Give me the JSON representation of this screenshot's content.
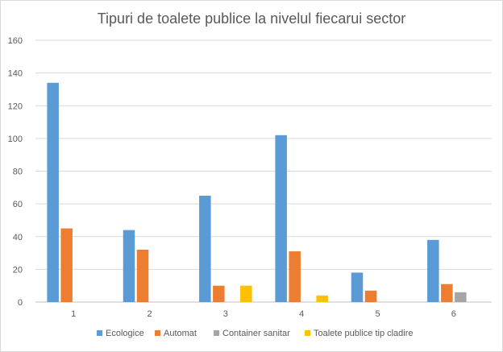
{
  "chart_data": {
    "type": "bar",
    "title": "Tipuri de toalete publice la nivelul fiecarui sector",
    "xlabel": "",
    "ylabel": "",
    "categories": [
      "1",
      "2",
      "3",
      "4",
      "5",
      "6"
    ],
    "ylim": [
      0,
      160
    ],
    "yticks": [
      "0",
      "20",
      "40",
      "60",
      "80",
      "100",
      "120",
      "140",
      "160"
    ],
    "grid": true,
    "legend_position": "bottom",
    "series": [
      {
        "name": "Ecologice",
        "color": "#5b9bd5",
        "values": [
          134,
          44,
          65,
          102,
          18,
          38
        ]
      },
      {
        "name": "Automat",
        "color": "#ed7d31",
        "values": [
          45,
          32,
          10,
          31,
          7,
          11
        ]
      },
      {
        "name": "Container sanitar",
        "color": "#a5a5a5",
        "values": [
          0,
          0,
          0,
          0,
          0,
          6
        ]
      },
      {
        "name": "Toalete publice tip cladire",
        "color": "#ffc000",
        "values": [
          0,
          0,
          10,
          4,
          0,
          0
        ]
      }
    ]
  }
}
